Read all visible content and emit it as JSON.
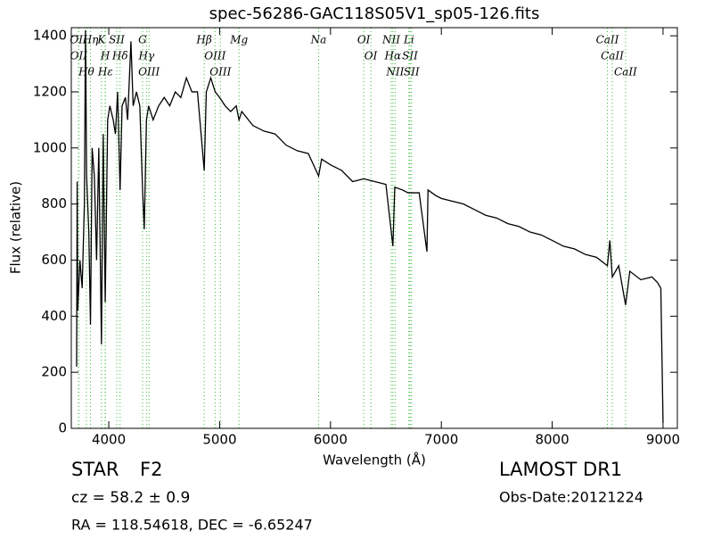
{
  "chart_data": {
    "type": "line",
    "title": "spec-56286-GAC118S05V1_sp05-126.fits",
    "xlabel": "Wavelength (Å)",
    "ylabel": "Flux (relative)",
    "color": "#000000",
    "line_marker_color": "#33bb33",
    "xlim": [
      3662,
      9129
    ],
    "ylim": [
      0,
      1429
    ],
    "xticks": [
      4000,
      5000,
      6000,
      7000,
      8000,
      9000
    ],
    "yticks": [
      0,
      200,
      400,
      600,
      800,
      1000,
      1200,
      1400
    ],
    "x": [
      3710,
      3715,
      3720,
      3740,
      3760,
      3780,
      3790,
      3800,
      3820,
      3835,
      3850,
      3870,
      3890,
      3910,
      3934,
      3950,
      3968,
      3990,
      4010,
      4040,
      4060,
      4080,
      4102,
      4120,
      4150,
      4170,
      4200,
      4220,
      4250,
      4280,
      4305,
      4320,
      4340,
      4360,
      4400,
      4450,
      4500,
      4550,
      4600,
      4650,
      4700,
      4750,
      4800,
      4861,
      4880,
      4920,
      4960,
      5000,
      5050,
      5100,
      5150,
      5175,
      5200,
      5300,
      5400,
      5500,
      5600,
      5700,
      5800,
      5893,
      5920,
      6000,
      6100,
      6200,
      6300,
      6400,
      6500,
      6563,
      6580,
      6650,
      6700,
      6800,
      6870,
      6880,
      6950,
      7000,
      7100,
      7200,
      7300,
      7400,
      7500,
      7600,
      7700,
      7800,
      7900,
      8000,
      8100,
      8200,
      8300,
      8400,
      8498,
      8520,
      8542,
      8600,
      8662,
      8700,
      8800,
      8900,
      8950,
      8980,
      9000
    ],
    "values": [
      220,
      880,
      420,
      600,
      500,
      800,
      1420,
      900,
      700,
      370,
      1000,
      900,
      600,
      1000,
      300,
      1050,
      450,
      1100,
      1150,
      1100,
      1050,
      1200,
      850,
      1150,
      1180,
      1100,
      1380,
      1150,
      1200,
      1150,
      850,
      710,
      1100,
      1150,
      1100,
      1150,
      1180,
      1150,
      1200,
      1180,
      1250,
      1200,
      1200,
      920,
      1200,
      1250,
      1200,
      1180,
      1150,
      1130,
      1150,
      1100,
      1130,
      1080,
      1060,
      1050,
      1010,
      990,
      980,
      900,
      960,
      940,
      920,
      880,
      890,
      880,
      870,
      650,
      860,
      850,
      840,
      840,
      630,
      850,
      830,
      820,
      810,
      800,
      780,
      760,
      750,
      730,
      720,
      700,
      690,
      670,
      650,
      640,
      620,
      610,
      580,
      670,
      540,
      580,
      440,
      560,
      530,
      540,
      520,
      500,
      20
    ],
    "lines": [
      {
        "x": 3727,
        "label": "OII"
      },
      {
        "x": 3729,
        "label": "OII"
      },
      {
        "x": 3798,
        "label": "Hθ"
      },
      {
        "x": 3835,
        "label": "Hη"
      },
      {
        "x": 3934,
        "label": "K"
      },
      {
        "x": 3968,
        "label": "H"
      },
      {
        "x": 3970,
        "label": "Hε"
      },
      {
        "x": 4072,
        "label": "SII"
      },
      {
        "x": 4102,
        "label": "Hδ"
      },
      {
        "x": 4305,
        "label": "G"
      },
      {
        "x": 4340,
        "label": "Hγ"
      },
      {
        "x": 4363,
        "label": "OIII"
      },
      {
        "x": 4861,
        "label": "Hβ"
      },
      {
        "x": 4959,
        "label": "OIII"
      },
      {
        "x": 5007,
        "label": "OIII"
      },
      {
        "x": 5175,
        "label": "Mg"
      },
      {
        "x": 5893,
        "label": "Na"
      },
      {
        "x": 6300,
        "label": "OI"
      },
      {
        "x": 6364,
        "label": "OI"
      },
      {
        "x": 6548,
        "label": "NII"
      },
      {
        "x": 6563,
        "label": "Hα"
      },
      {
        "x": 6583,
        "label": "NII"
      },
      {
        "x": 6708,
        "label": "Li"
      },
      {
        "x": 6717,
        "label": "SII"
      },
      {
        "x": 6731,
        "label": "SII"
      },
      {
        "x": 8498,
        "label": "CaII"
      },
      {
        "x": 8542,
        "label": "CaII"
      },
      {
        "x": 8662,
        "label": "CaII"
      }
    ]
  },
  "info": {
    "class": "STAR",
    "subclass": "F2",
    "redshift": "cz = 58.2  ± 0.9",
    "coords": "RA = 118.54618, DEC = -6.65247",
    "release": "LAMOST DR1",
    "obs_date": "Obs-Date:20121224"
  }
}
